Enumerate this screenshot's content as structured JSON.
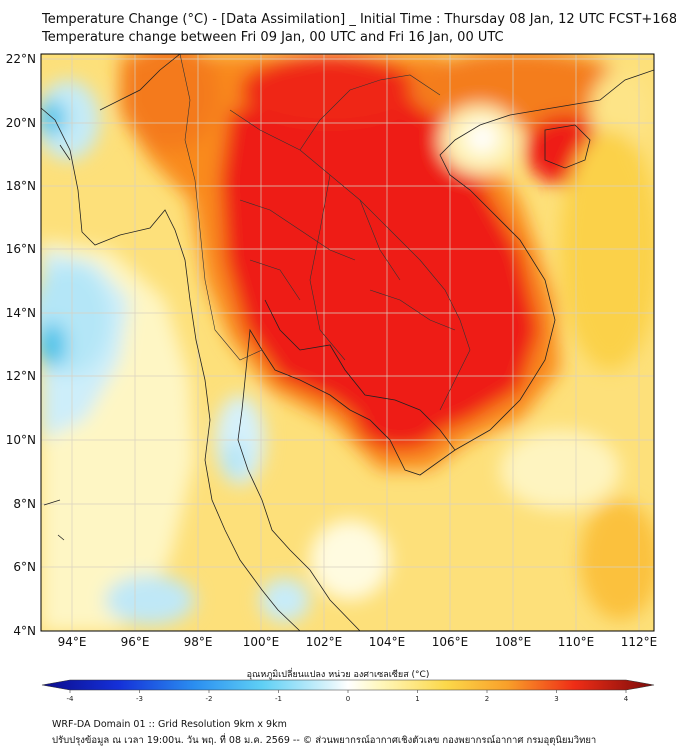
{
  "header": {
    "title_line1": "Temperature Change (°C) - [Data Assimilation] _ Initial Time : Thursday 08 Jan, 12 UTC FCST+168",
    "title_line2": "Temperature change between Fri 09 Jan, 00 UTC and Fri 16 Jan, 00 UTC"
  },
  "map": {
    "lat_labels": [
      "22°N",
      "20°N",
      "18°N",
      "16°N",
      "14°N",
      "12°N",
      "10°N",
      "8°N",
      "6°N",
      "4°N"
    ],
    "lon_labels": [
      "94°E",
      "96°E",
      "98°E",
      "100°E",
      "102°E",
      "104°E",
      "106°E",
      "108°E",
      "110°E",
      "112°E"
    ],
    "lat_range": [
      4,
      22
    ],
    "lon_range": [
      93,
      112.5
    ],
    "field_colors": {
      "warm_strong": "#ee1c12",
      "warm_mid": "#f98a1c",
      "warm_light": "#fbd548",
      "neutral": "#fef9c8",
      "cool": "#b9e6f5",
      "cold": "#3cbde8"
    }
  },
  "colorbar": {
    "title": "อุณหภูมิเปลี่ยนแปลง หน่วย องศาเซลเซียส (°C)",
    "tick_labels": [
      "-4",
      "-3",
      "-2",
      "-1",
      "0",
      "1",
      "2",
      "3",
      "4"
    ],
    "range": [
      -4,
      4
    ]
  },
  "footer": {
    "line1": "WRF-DA Domain 01 :: Grid Resolution 9km x 9km",
    "line2": "ปรับปรุงข้อมูล ณ เวลา 19:00น. วัน พฤ. ที่ 08 ม.ค. 2569 -- © ส่วนพยากรณ์อากาศเชิงตัวเลข กองพยากรณ์อากาศ กรมอุตุนิยมวิทยา"
  }
}
